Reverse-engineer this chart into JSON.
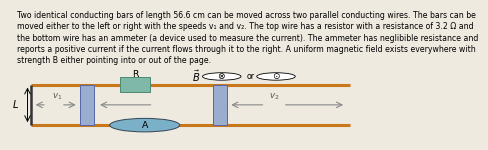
{
  "text_block": "Two identical conducting bars of length 56.6 cm can be moved across two parallel conducting wires. The bars can be\nmoved either to the left or right with the speeds v₁ and v₂. The top wire has a resistor with a resistance of 3.2 Ω and\nthe bottom wire has an ammeter (a device used to measure the current). The ammeter has neglibible resistance and\nreports a positive current if the current flows through it to the right. A uniform magnetic field exists everywhere with\nstrength B either pointing into or out of the page.",
  "wire_color": "#c8781a",
  "bar_color": "#9aadcf",
  "bar_edge_color": "#5566aa",
  "resistor_color": "#7fb8a8",
  "resistor_edge": "#4d8870",
  "ammeter_face": "#7ab0c8",
  "ammeter_edge": "#334455",
  "bg_color": "#eeeae0",
  "text_fontsize": 5.6,
  "label_fontsize": 6.2,
  "arrow_color": "#888888",
  "left_end_color": "#333333"
}
